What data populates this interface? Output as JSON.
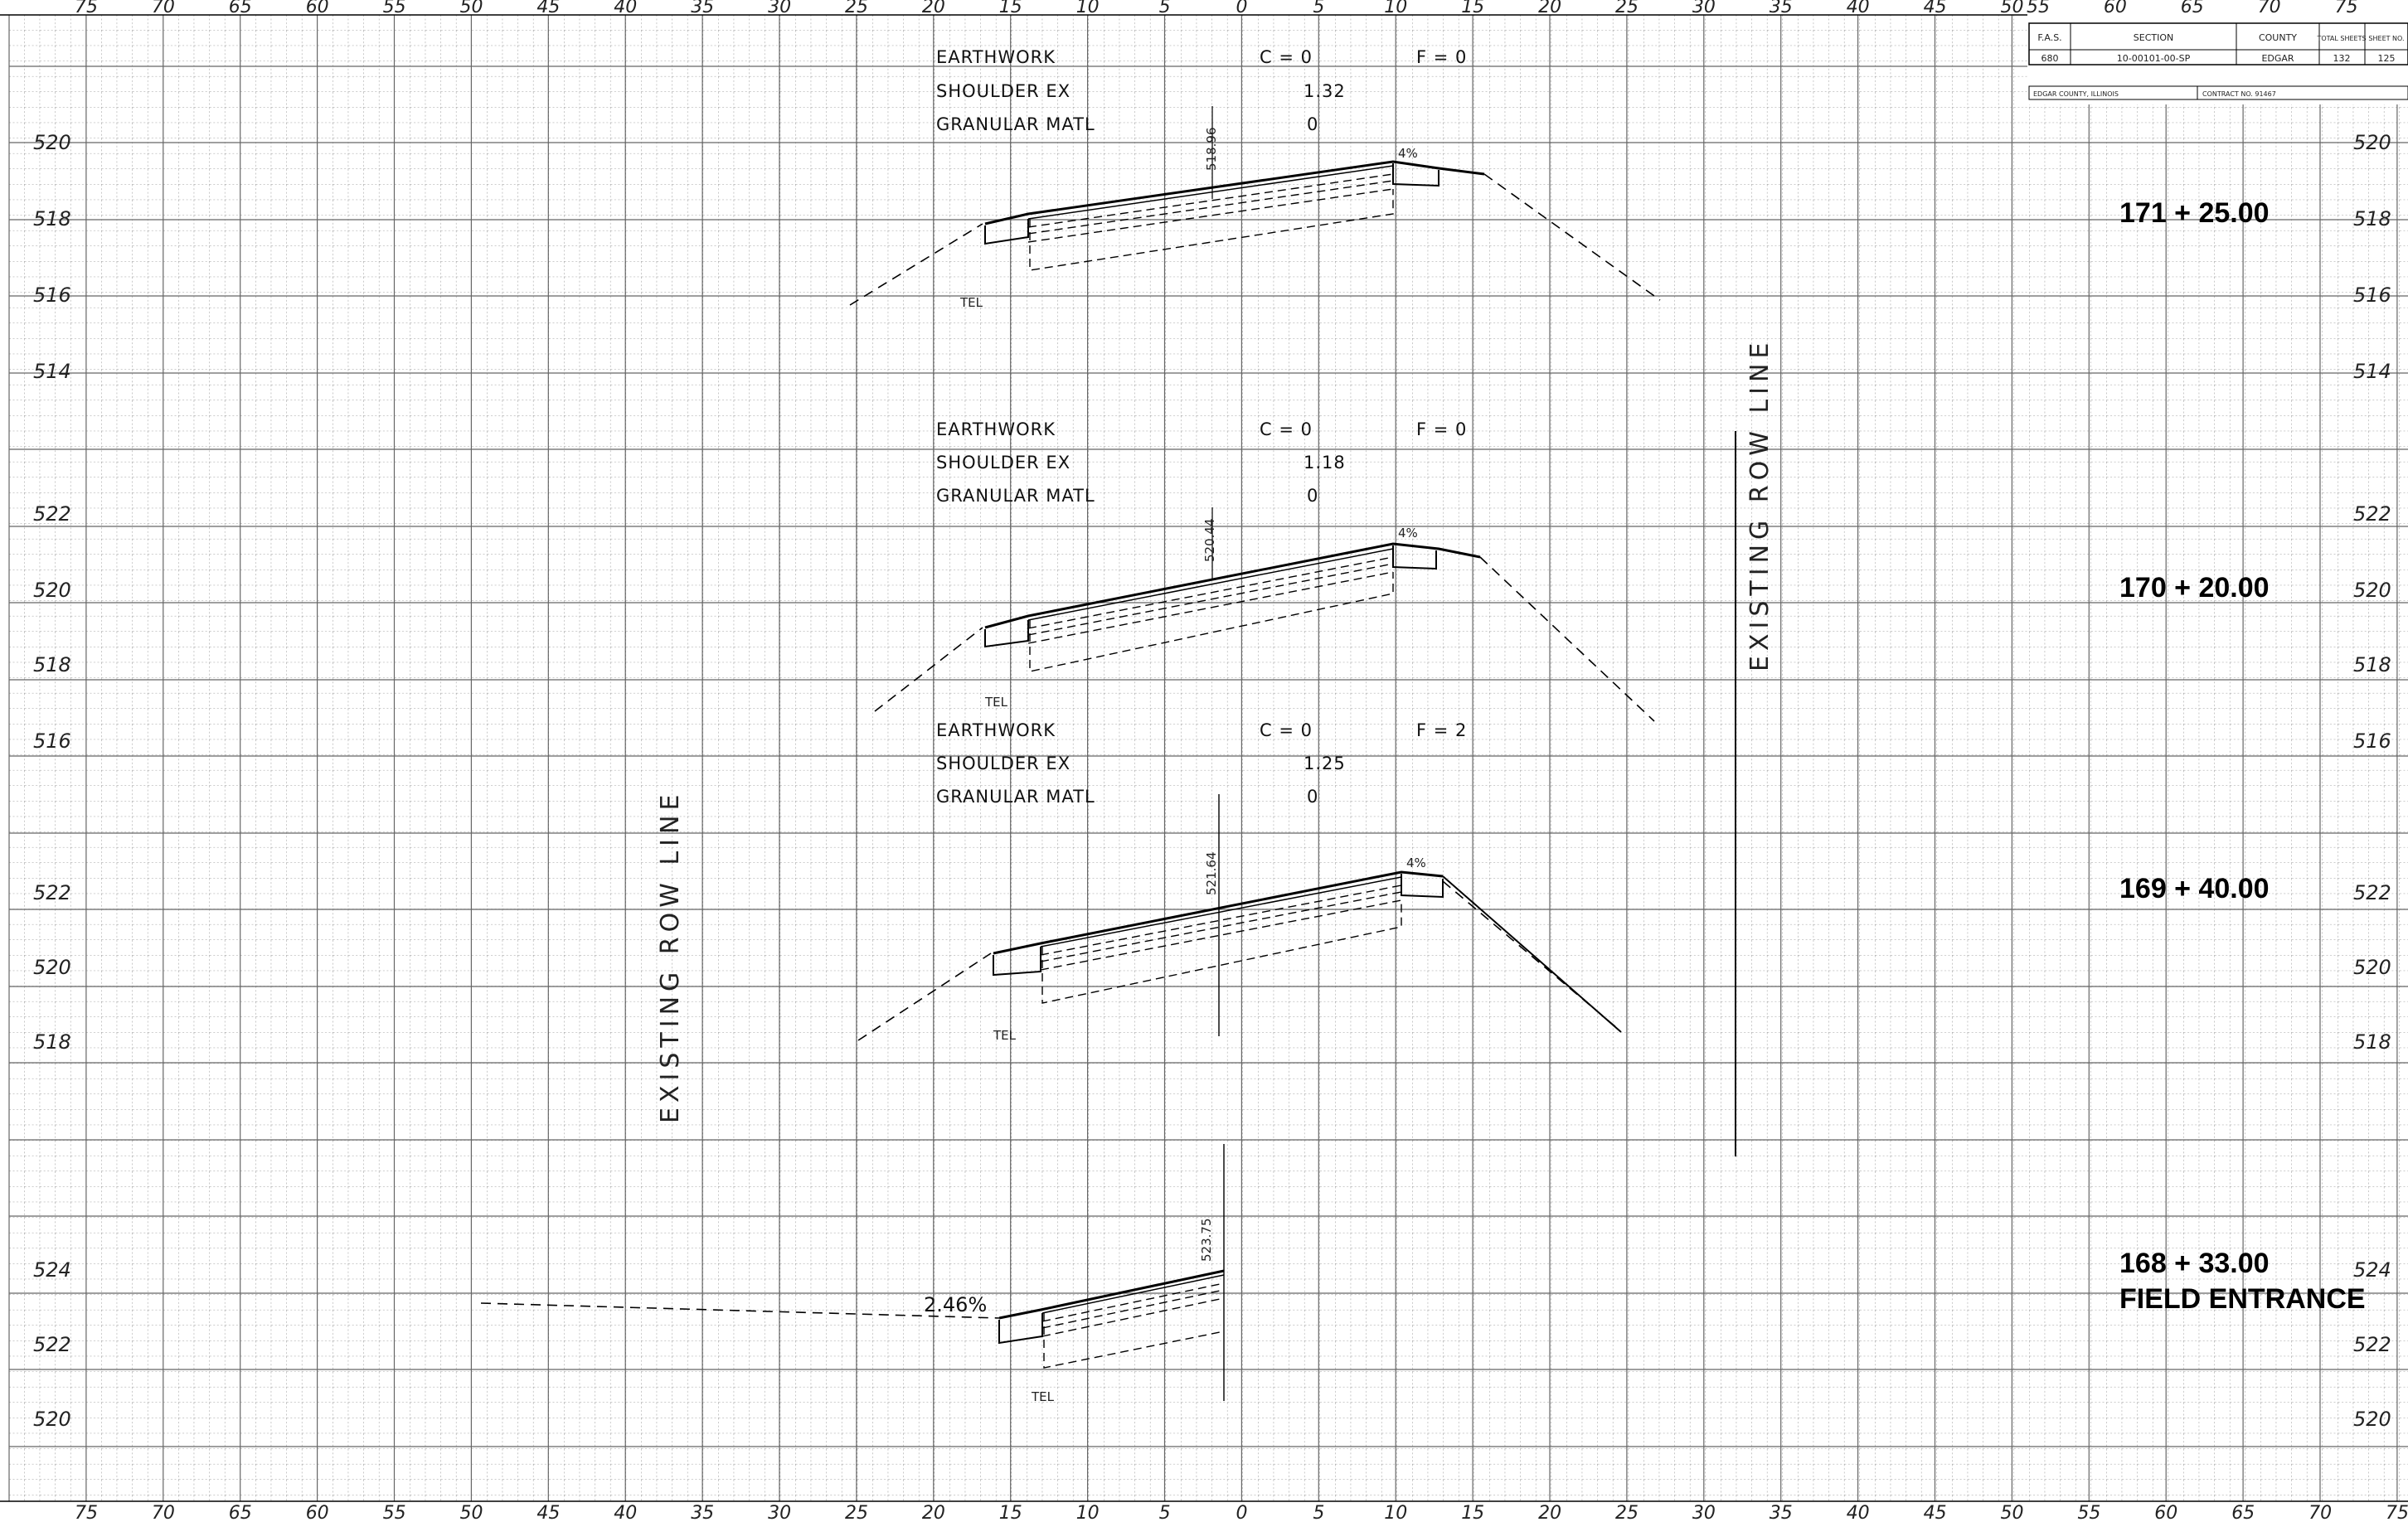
{
  "scales": {
    "bottom": [
      "75",
      "70",
      "65",
      "60",
      "55",
      "50",
      "45",
      "40",
      "35",
      "30",
      "25",
      "20",
      "15",
      "10",
      "5",
      "0",
      "5",
      "10",
      "15",
      "20",
      "25",
      "30",
      "35",
      "40",
      "45",
      "50",
      "55",
      "60",
      "65",
      "70",
      "75"
    ],
    "top": [
      "75",
      "70",
      "65",
      "60",
      "55",
      "50",
      "45",
      "40",
      "35",
      "30",
      "25",
      "20",
      "15",
      "10",
      "5",
      "0",
      "5",
      "10",
      "15",
      "20",
      "25",
      "30",
      "35",
      "40",
      "45",
      "50"
    ],
    "top_right": [
      "55",
      "60",
      "65",
      "70",
      "75"
    ]
  },
  "title_block": {
    "headers": [
      "F.A.S.",
      "SECTION",
      "COUNTY",
      "TOTAL SHEETS",
      "SHEET NO."
    ],
    "values": [
      "680",
      "10-00101-00-SP",
      "EDGAR",
      "132",
      "125"
    ],
    "location": "EDGAR COUNTY, ILLINOIS",
    "contract": "CONTRACT NO. 91467"
  },
  "row_line_label": "EXISTING ROW LINE",
  "sections": [
    {
      "station": "171 + 25.00",
      "subtitle": "",
      "earthwork_label": "EARTHWORK",
      "cut": "C = 0",
      "fill": "F = 0",
      "shoulder_label": "SHOULDER EX",
      "shoulder_value": "1.32",
      "granular_label": "GRANULAR MATL",
      "granular_value": "0",
      "cl_elevation": "518.96",
      "slope": "4%",
      "tel": "TEL",
      "elevations_left": [
        "520",
        "518",
        "516",
        "514"
      ],
      "elevations_right": [
        "520",
        "518",
        "516",
        "514"
      ]
    },
    {
      "station": "170 + 20.00",
      "subtitle": "",
      "earthwork_label": "EARTHWORK",
      "cut": "C = 0",
      "fill": "F = 0",
      "shoulder_label": "SHOULDER EX",
      "shoulder_value": "1.18",
      "granular_label": "GRANULAR MATL",
      "granular_value": "0",
      "cl_elevation": "520.44",
      "slope": "4%",
      "tel": "TEL",
      "elevations_left": [
        "522",
        "520",
        "518",
        "516"
      ],
      "elevations_right": [
        "522",
        "520",
        "518",
        "516"
      ]
    },
    {
      "station": "169 + 40.00",
      "subtitle": "",
      "earthwork_label": "EARTHWORK",
      "cut": "C = 0",
      "fill": "F = 2",
      "shoulder_label": "SHOULDER EX",
      "shoulder_value": "1.25",
      "granular_label": "GRANULAR MATL",
      "granular_value": "0",
      "cl_elevation": "521.64",
      "slope": "4%",
      "tel": "TEL",
      "elevations_left": [
        "522",
        "520",
        "518"
      ],
      "elevations_right": [
        "522",
        "520",
        "518"
      ]
    },
    {
      "station": "168 + 33.00",
      "subtitle": "FIELD ENTRANCE",
      "cl_elevation": "523.75",
      "slope": "2.46%",
      "tel": "TEL",
      "elevations_left": [
        "524",
        "522",
        "520"
      ],
      "elevations_right": [
        "524",
        "522",
        "520"
      ]
    }
  ]
}
